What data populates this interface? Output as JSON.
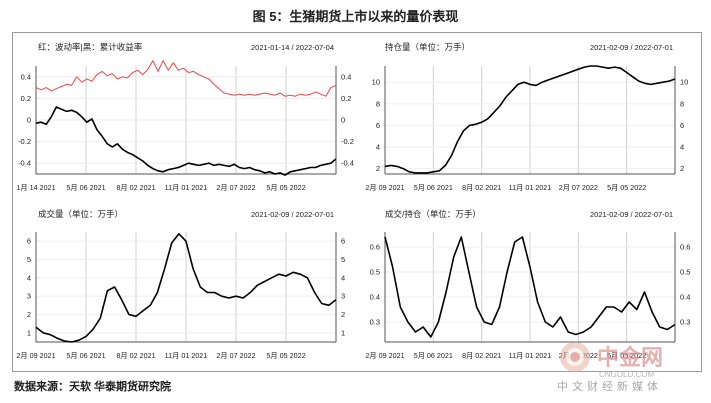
{
  "title": "图 5：生猪期货上市以来的量价表现",
  "source": "数据来源：天软 华泰期货研究院",
  "watermark": {
    "brand": "中金网",
    "url": "CNGOLD.COM",
    "tagline": "中文财经新媒体"
  },
  "colors": {
    "red": "#e8474a",
    "black": "#000000",
    "grid": "#d0d0d0",
    "axis": "#555555"
  },
  "chart_data": [
    {
      "type": "line",
      "title": "红：波动率|黑：累计收益率",
      "date_range": "2021-01-14 / 2022-07-04",
      "x_ticks": [
        "1月 14 2021",
        "5月 06 2021",
        "8月 02 2021",
        "11月 01 2021",
        "2月 07 2022",
        "5月 05 2022"
      ],
      "ylim": [
        -0.5,
        0.5
      ],
      "y_ticks_left": [
        "0.4",
        "0.2",
        "0",
        "-0.2",
        "-0.4"
      ],
      "y_ticks_right": [
        "0.4",
        "0.2",
        "0",
        "-0.2",
        "-0.4"
      ],
      "series": [
        {
          "color": "#e8474a",
          "values": [
            0.3,
            0.28,
            0.3,
            0.27,
            0.29,
            0.31,
            0.33,
            0.32,
            0.4,
            0.35,
            0.38,
            0.36,
            0.42,
            0.45,
            0.41,
            0.43,
            0.38,
            0.4,
            0.39,
            0.44,
            0.46,
            0.42,
            0.47,
            0.55,
            0.45,
            0.55,
            0.46,
            0.53,
            0.46,
            0.48,
            0.44,
            0.45,
            0.42,
            0.4,
            0.38,
            0.33,
            0.29,
            0.25,
            0.24,
            0.23,
            0.24,
            0.23,
            0.24,
            0.23,
            0.24,
            0.25,
            0.24,
            0.23,
            0.25,
            0.22,
            0.23,
            0.22,
            0.24,
            0.23,
            0.24,
            0.26,
            0.24,
            0.22,
            0.3,
            0.32
          ]
        },
        {
          "color": "#000000",
          "values": [
            -0.03,
            -0.02,
            -0.04,
            0.03,
            0.12,
            0.1,
            0.08,
            0.09,
            0.07,
            0.03,
            -0.02,
            0.01,
            -0.09,
            -0.15,
            -0.22,
            -0.25,
            -0.22,
            -0.27,
            -0.3,
            -0.32,
            -0.35,
            -0.38,
            -0.42,
            -0.45,
            -0.47,
            -0.48,
            -0.46,
            -0.45,
            -0.44,
            -0.42,
            -0.4,
            -0.41,
            -0.42,
            -0.41,
            -0.4,
            -0.42,
            -0.41,
            -0.42,
            -0.43,
            -0.41,
            -0.44,
            -0.45,
            -0.44,
            -0.46,
            -0.47,
            -0.49,
            -0.48,
            -0.5,
            -0.49,
            -0.51,
            -0.48,
            -0.47,
            -0.46,
            -0.45,
            -0.44,
            -0.44,
            -0.42,
            -0.41,
            -0.4,
            -0.36
          ]
        }
      ]
    },
    {
      "type": "line",
      "title": "持仓量（单位：万手）",
      "date_range": "2021-02-09 / 2022-07-01",
      "x_ticks": [
        "2月 09 2021",
        "5月 06 2021",
        "8月 02 2021",
        "11月 01 2021",
        "2月 07 2022",
        "5月 05 2022"
      ],
      "ylim": [
        1.5,
        11.5
      ],
      "y_ticks_left": [
        "10",
        "8",
        "6",
        "4",
        "2"
      ],
      "y_ticks_right": [
        "10",
        "8",
        "6",
        "4",
        "2"
      ],
      "series": [
        {
          "color": "#000000",
          "values": [
            2.2,
            2.3,
            2.2,
            2.0,
            1.7,
            1.6,
            1.6,
            1.6,
            1.7,
            1.8,
            2.3,
            3.2,
            4.5,
            5.5,
            6.0,
            6.1,
            6.3,
            6.6,
            7.2,
            7.8,
            8.6,
            9.2,
            9.8,
            10.0,
            9.8,
            9.7,
            10.0,
            10.2,
            10.4,
            10.6,
            10.8,
            11.0,
            11.2,
            11.4,
            11.5,
            11.5,
            11.4,
            11.3,
            11.4,
            11.3,
            10.9,
            10.5,
            10.1,
            9.9,
            9.8,
            9.9,
            10.0,
            10.1,
            10.3
          ]
        }
      ]
    },
    {
      "type": "line",
      "title": "成交量（单位：万手）",
      "date_range": "2021-02-09 / 2022-07-01",
      "x_ticks": [
        "2月 09 2021",
        "5月 06 2021",
        "8月 02 2021",
        "11月 01 2021",
        "2月 07 2022",
        "5月 05 2022"
      ],
      "ylim": [
        0.5,
        6.5
      ],
      "y_ticks_left": [
        "6",
        "5",
        "4",
        "3",
        "2",
        "1"
      ],
      "y_ticks_right": [
        "6",
        "5",
        "4",
        "3",
        "2",
        "1"
      ],
      "series": [
        {
          "color": "#000000",
          "values": [
            1.3,
            1.0,
            0.9,
            0.7,
            0.55,
            0.5,
            0.6,
            0.8,
            1.2,
            1.8,
            3.3,
            3.5,
            2.8,
            2.0,
            1.9,
            2.2,
            2.5,
            3.2,
            4.5,
            5.9,
            6.4,
            6.0,
            4.5,
            3.5,
            3.2,
            3.2,
            3.0,
            2.9,
            3.0,
            2.9,
            3.2,
            3.6,
            3.8,
            4.0,
            4.2,
            4.1,
            4.3,
            4.2,
            4.0,
            3.2,
            2.6,
            2.5,
            2.8
          ]
        }
      ]
    },
    {
      "type": "line",
      "title": "成交/持仓（单位：万手）",
      "date_range": "2021-02-09 / 2022-07-01",
      "x_ticks": [
        "2月 09 2021",
        "5月 06 2021",
        "8月 02 2021",
        "11月 01 2021",
        "2月 07 2022",
        "5月 05 2022"
      ],
      "ylim": [
        0.22,
        0.66
      ],
      "y_ticks_left": [
        "0.6",
        "0.5",
        "0.4",
        "0.3"
      ],
      "y_ticks_right": [
        "0.6",
        "0.5",
        "0.4",
        "0.3"
      ],
      "series": [
        {
          "color": "#000000",
          "values": [
            0.64,
            0.52,
            0.36,
            0.3,
            0.26,
            0.28,
            0.24,
            0.3,
            0.42,
            0.56,
            0.64,
            0.5,
            0.36,
            0.3,
            0.29,
            0.36,
            0.5,
            0.62,
            0.64,
            0.52,
            0.38,
            0.3,
            0.28,
            0.32,
            0.26,
            0.25,
            0.26,
            0.28,
            0.32,
            0.36,
            0.36,
            0.34,
            0.38,
            0.35,
            0.42,
            0.34,
            0.28,
            0.27,
            0.29
          ]
        }
      ]
    }
  ]
}
